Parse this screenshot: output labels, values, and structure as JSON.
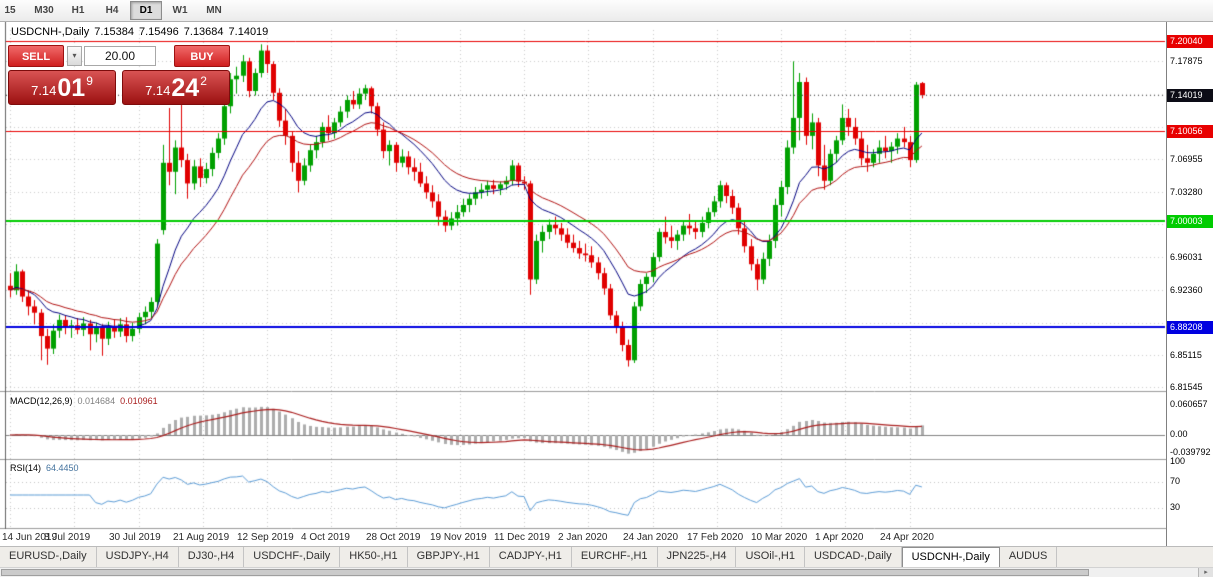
{
  "toolbar": {
    "timeframes": [
      "15",
      "M30",
      "H1",
      "H4",
      "D1",
      "W1",
      "MN"
    ],
    "active": "D1"
  },
  "chart_title": {
    "symbol": "USDCNH-,Daily",
    "open": "7.15384",
    "high": "7.15496",
    "low": "7.13684",
    "close": "7.14019"
  },
  "trade_panel": {
    "sell_label": "SELL",
    "buy_label": "BUY",
    "volume": "20.00",
    "dropdown_icon": "▾",
    "bid": {
      "small": "7.14",
      "big": "01",
      "sup": "9"
    },
    "ask": {
      "small": "7.14",
      "big": "24",
      "sup": "2"
    }
  },
  "chart_data": {
    "type": "candlestick",
    "symbol": "USDCNH-,Daily",
    "x_tick_labels": [
      "14 Jun 2019",
      "8 Jul 2019",
      "30 Jul 2019",
      "21 Aug 2019",
      "12 Sep 2019",
      "4 Oct 2019",
      "28 Oct 2019",
      "19 Nov 2019",
      "11 Dec 2019",
      "2 Jan 2020",
      "24 Jan 2020",
      "17 Feb 2020",
      "10 Mar 2020",
      "1 Apr 2020",
      "24 Apr 2020"
    ],
    "price_axis_labels": [
      "7.17875",
      "7.06955",
      "7.03280",
      "6.96031",
      "6.92360",
      "6.85115",
      "6.81545"
    ],
    "levels": [
      {
        "price": 7.2004,
        "label": "7.20040",
        "color": "#e80000",
        "width": 1
      },
      {
        "price": 7.10056,
        "label": "7.10056",
        "color": "#e80000",
        "width": 1
      },
      {
        "price": 7.00003,
        "label": "7.00003",
        "color": "#00cc00",
        "width": 2
      },
      {
        "price": 6.88208,
        "label": "6.88208",
        "color": "#0000e0",
        "width": 2
      }
    ],
    "current_price": {
      "value": 7.14019,
      "label": "7.14019",
      "badge_color": "#0c0c16"
    },
    "ohlc": [
      [
        6.928,
        6.942,
        6.915,
        6.923
      ],
      [
        6.923,
        6.952,
        6.918,
        6.944
      ],
      [
        6.944,
        6.946,
        6.91,
        6.916
      ],
      [
        6.916,
        6.923,
        6.895,
        6.905
      ],
      [
        6.905,
        6.912,
        6.885,
        6.898
      ],
      [
        6.898,
        6.902,
        6.845,
        6.872
      ],
      [
        6.872,
        6.88,
        6.84,
        6.858
      ],
      [
        6.858,
        6.885,
        6.852,
        6.878
      ],
      [
        6.878,
        6.896,
        6.87,
        6.89
      ],
      [
        6.89,
        6.895,
        6.874,
        6.881
      ],
      [
        6.881,
        6.89,
        6.87,
        6.884
      ],
      [
        6.884,
        6.892,
        6.874,
        6.879
      ],
      [
        6.879,
        6.893,
        6.872,
        6.886
      ],
      [
        6.886,
        6.89,
        6.856,
        6.874
      ],
      [
        6.874,
        6.887,
        6.865,
        6.881
      ],
      [
        6.881,
        6.885,
        6.85,
        6.869
      ],
      [
        6.869,
        6.888,
        6.862,
        6.883
      ],
      [
        6.883,
        6.89,
        6.87,
        6.877
      ],
      [
        6.877,
        6.892,
        6.871,
        6.885
      ],
      [
        6.885,
        6.893,
        6.865,
        6.872
      ],
      [
        6.872,
        6.887,
        6.866,
        6.88
      ],
      [
        6.88,
        6.898,
        6.875,
        6.893
      ],
      [
        6.893,
        6.905,
        6.885,
        6.899
      ],
      [
        6.899,
        6.915,
        6.892,
        6.91
      ],
      [
        6.91,
        6.98,
        6.905,
        6.975
      ],
      [
        6.99,
        7.085,
        6.985,
        7.065
      ],
      [
        7.065,
        7.126,
        7.04,
        7.055
      ],
      [
        7.055,
        7.09,
        7.03,
        7.082
      ],
      [
        7.082,
        7.138,
        7.06,
        7.068
      ],
      [
        7.068,
        7.075,
        7.025,
        7.042
      ],
      [
        7.042,
        7.068,
        7.035,
        7.061
      ],
      [
        7.061,
        7.07,
        7.038,
        7.048
      ],
      [
        7.048,
        7.065,
        7.042,
        7.058
      ],
      [
        7.058,
        7.082,
        7.05,
        7.076
      ],
      [
        7.076,
        7.098,
        7.07,
        7.092
      ],
      [
        7.092,
        7.135,
        7.085,
        7.128
      ],
      [
        7.128,
        7.165,
        7.12,
        7.158
      ],
      [
        7.158,
        7.172,
        7.142,
        7.162
      ],
      [
        7.162,
        7.185,
        7.155,
        7.178
      ],
      [
        7.178,
        7.182,
        7.138,
        7.145
      ],
      [
        7.145,
        7.17,
        7.14,
        7.165
      ],
      [
        7.165,
        7.197,
        7.16,
        7.19
      ],
      [
        7.19,
        7.196,
        7.165,
        7.175
      ],
      [
        7.175,
        7.178,
        7.135,
        7.143
      ],
      [
        7.143,
        7.148,
        7.105,
        7.112
      ],
      [
        7.112,
        7.125,
        7.085,
        7.095
      ],
      [
        7.095,
        7.1,
        7.055,
        7.065
      ],
      [
        7.065,
        7.078,
        7.032,
        7.045
      ],
      [
        7.045,
        7.07,
        7.04,
        7.062
      ],
      [
        7.062,
        7.085,
        7.055,
        7.079
      ],
      [
        7.079,
        7.095,
        7.07,
        7.088
      ],
      [
        7.088,
        7.11,
        7.082,
        7.105
      ],
      [
        7.105,
        7.118,
        7.09,
        7.098
      ],
      [
        7.098,
        7.115,
        7.092,
        7.11
      ],
      [
        7.11,
        7.128,
        7.105,
        7.122
      ],
      [
        7.122,
        7.14,
        7.115,
        7.135
      ],
      [
        7.135,
        7.145,
        7.125,
        7.13
      ],
      [
        7.13,
        7.148,
        7.125,
        7.142
      ],
      [
        7.142,
        7.152,
        7.135,
        7.148
      ],
      [
        7.148,
        7.15,
        7.12,
        7.128
      ],
      [
        7.128,
        7.132,
        7.095,
        7.102
      ],
      [
        7.102,
        7.11,
        7.07,
        7.078
      ],
      [
        7.078,
        7.09,
        7.062,
        7.085
      ],
      [
        7.085,
        7.088,
        7.055,
        7.065
      ],
      [
        7.065,
        7.08,
        7.06,
        7.072
      ],
      [
        7.072,
        7.078,
        7.052,
        7.06
      ],
      [
        7.06,
        7.07,
        7.045,
        7.055
      ],
      [
        7.055,
        7.065,
        7.038,
        7.042
      ],
      [
        7.042,
        7.05,
        7.025,
        7.032
      ],
      [
        7.032,
        7.04,
        7.015,
        7.022
      ],
      [
        7.022,
        7.03,
        6.995,
        7.005
      ],
      [
        7.005,
        7.012,
        6.988,
        6.995
      ],
      [
        6.995,
        7.01,
        6.99,
        7.003
      ],
      [
        7.003,
        7.018,
        6.995,
        7.01
      ],
      [
        7.01,
        7.025,
        7.005,
        7.018
      ],
      [
        7.018,
        7.03,
        7.01,
        7.025
      ],
      [
        7.025,
        7.038,
        7.018,
        7.032
      ],
      [
        7.032,
        7.042,
        7.025,
        7.035
      ],
      [
        7.035,
        7.045,
        7.028,
        7.04
      ],
      [
        7.04,
        7.046,
        7.03,
        7.036
      ],
      [
        7.036,
        7.044,
        7.029,
        7.041
      ],
      [
        7.041,
        7.05,
        7.035,
        7.045
      ],
      [
        7.045,
        7.068,
        7.04,
        7.062
      ],
      [
        7.062,
        7.065,
        7.038,
        7.044
      ],
      [
        7.044,
        7.05,
        7.035,
        7.042
      ],
      [
        7.042,
        7.045,
        6.918,
        6.935
      ],
      [
        6.935,
        6.985,
        6.93,
        6.978
      ],
      [
        6.978,
        6.995,
        6.965,
        6.988
      ],
      [
        6.988,
        7.002,
        6.98,
        6.996
      ],
      [
        6.996,
        7.005,
        6.985,
        6.992
      ],
      [
        6.992,
        6.998,
        6.978,
        6.985
      ],
      [
        6.985,
        6.992,
        6.97,
        6.976
      ],
      [
        6.976,
        6.985,
        6.965,
        6.97
      ],
      [
        6.97,
        6.978,
        6.958,
        6.964
      ],
      [
        6.964,
        6.975,
        6.955,
        6.962
      ],
      [
        6.962,
        6.972,
        6.948,
        6.954
      ],
      [
        6.954,
        6.96,
        6.935,
        6.942
      ],
      [
        6.942,
        6.948,
        6.918,
        6.925
      ],
      [
        6.925,
        6.93,
        6.89,
        6.895
      ],
      [
        6.895,
        6.9,
        6.875,
        6.882
      ],
      [
        6.882,
        6.888,
        6.855,
        6.862
      ],
      [
        6.862,
        6.868,
        6.838,
        6.845
      ],
      [
        6.845,
        6.91,
        6.842,
        6.905
      ],
      [
        6.905,
        6.935,
        6.9,
        6.93
      ],
      [
        6.93,
        6.942,
        6.92,
        6.938
      ],
      [
        6.938,
        6.965,
        6.932,
        6.96
      ],
      [
        6.96,
        6.992,
        6.955,
        6.988
      ],
      [
        6.988,
        7.005,
        6.975,
        6.982
      ],
      [
        6.982,
        6.995,
        6.97,
        6.978
      ],
      [
        6.978,
        6.99,
        6.968,
        6.985
      ],
      [
        6.985,
        7.0,
        6.978,
        6.995
      ],
      [
        6.995,
        7.008,
        6.985,
        6.992
      ],
      [
        6.992,
        7.0,
        6.98,
        6.988
      ],
      [
        6.988,
        7.005,
        6.982,
        6.998
      ],
      [
        6.998,
        7.015,
        6.992,
        7.01
      ],
      [
        7.01,
        7.028,
        7.005,
        7.022
      ],
      [
        7.022,
        7.045,
        7.015,
        7.04
      ],
      [
        7.04,
        7.043,
        7.02,
        7.028
      ],
      [
        7.028,
        7.035,
        7.008,
        7.015
      ],
      [
        7.015,
        7.02,
        6.985,
        6.992
      ],
      [
        6.992,
        7.0,
        6.965,
        6.972
      ],
      [
        6.972,
        6.98,
        6.945,
        6.952
      ],
      [
        6.952,
        6.958,
        6.923,
        6.935
      ],
      [
        6.935,
        6.965,
        6.93,
        6.958
      ],
      [
        6.958,
        6.985,
        6.95,
        6.978
      ],
      [
        6.978,
        7.025,
        6.97,
        7.018
      ],
      [
        7.018,
        7.045,
        7.005,
        7.038
      ],
      [
        7.038,
        7.09,
        7.03,
        7.082
      ],
      [
        7.082,
        7.178,
        7.075,
        7.115
      ],
      [
        7.115,
        7.165,
        7.09,
        7.155
      ],
      [
        7.155,
        7.16,
        7.085,
        7.095
      ],
      [
        7.095,
        7.12,
        7.08,
        7.11
      ],
      [
        7.11,
        7.115,
        7.05,
        7.062
      ],
      [
        7.062,
        7.085,
        7.035,
        7.045
      ],
      [
        7.045,
        7.08,
        7.04,
        7.075
      ],
      [
        7.075,
        7.095,
        7.065,
        7.09
      ],
      [
        7.09,
        7.13,
        7.085,
        7.115
      ],
      [
        7.115,
        7.125,
        7.095,
        7.105
      ],
      [
        7.105,
        7.115,
        7.085,
        7.092
      ],
      [
        7.092,
        7.1,
        7.062,
        7.07
      ],
      [
        7.07,
        7.085,
        7.055,
        7.065
      ],
      [
        7.065,
        7.08,
        7.06,
        7.075
      ],
      [
        7.075,
        7.09,
        7.065,
        7.082
      ],
      [
        7.082,
        7.095,
        7.07,
        7.078
      ],
      [
        7.078,
        7.088,
        7.065,
        7.083
      ],
      [
        7.083,
        7.098,
        7.075,
        7.092
      ],
      [
        7.092,
        7.105,
        7.082,
        7.088
      ],
      [
        7.088,
        7.095,
        7.06,
        7.068
      ],
      [
        7.068,
        7.155,
        7.065,
        7.152
      ],
      [
        7.1538,
        7.155,
        7.1368,
        7.1402
      ]
    ],
    "candle_colors": {
      "up": "#00a000",
      "down": "#e00000"
    },
    "indicators": {
      "ma_fast": {
        "period": 12,
        "color": "#000080"
      },
      "ma_slow": {
        "period": 21,
        "color": "#b01010"
      },
      "macd": {
        "name": "MACD(12,26,9)",
        "fast": 12,
        "slow": 26,
        "signal": 9,
        "value_main": "0.014684",
        "value_signal": "0.010961",
        "axis_labels": [
          "0.060657",
          "0.00",
          "-0.039792"
        ],
        "histogram_color": "#adadad",
        "signal_color": "#aa2020"
      },
      "rsi": {
        "name": "RSI(14)",
        "period": 14,
        "value": "64.4450",
        "axis_labels": [
          "100",
          "70",
          "30"
        ],
        "levels": [
          70,
          30
        ],
        "color": "#5b9bd5"
      }
    }
  },
  "tabs": {
    "items": [
      {
        "label": "EURUSD-,Daily"
      },
      {
        "label": "USDJPY-,H4"
      },
      {
        "label": "DJ30-,H4"
      },
      {
        "label": "USDCHF-,Daily"
      },
      {
        "label": "HK50-,H1"
      },
      {
        "label": "GBPJPY-,H1"
      },
      {
        "label": "CADJPY-,H1"
      },
      {
        "label": "EURCHF-,H1"
      },
      {
        "label": "JPN225-,H4"
      },
      {
        "label": "USOil-,H1"
      },
      {
        "label": "USDCAD-,Daily"
      },
      {
        "label": "USDCNH-,Daily",
        "active": true
      },
      {
        "label": "AUDUS"
      }
    ]
  },
  "scrollbar": {
    "arrow_icon": "▸"
  }
}
